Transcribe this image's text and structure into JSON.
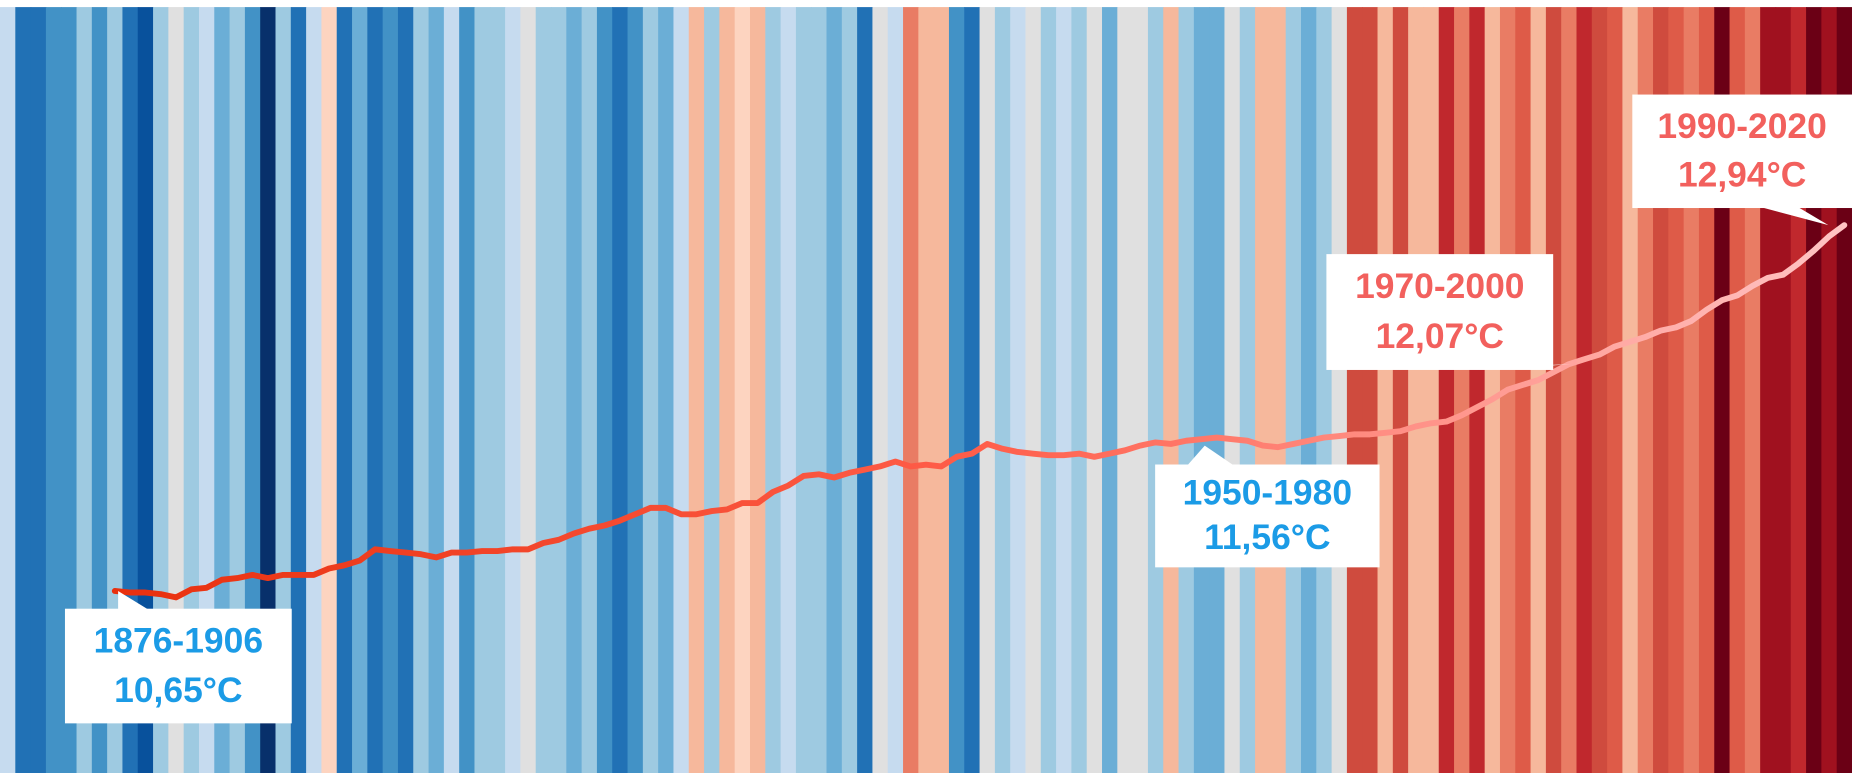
{
  "chart_data": {
    "type": "stripes",
    "stripes": {
      "values": [
        11.39,
        10.29,
        10.29,
        10.56,
        10.56,
        11.11,
        10.56,
        11.11,
        10.29,
        10.01,
        11.11,
        11.66,
        11.11,
        11.39,
        10.84,
        11.11,
        10.56,
        9.74,
        11.11,
        10.29,
        11.39,
        11.94,
        10.29,
        10.84,
        10.29,
        10.56,
        10.29,
        11.11,
        10.84,
        11.39,
        10.56,
        11.11,
        11.11,
        11.39,
        11.66,
        11.11,
        11.11,
        10.84,
        11.11,
        10.56,
        10.29,
        10.56,
        11.11,
        10.84,
        11.39,
        12.21,
        11.11,
        12.21,
        11.94,
        12.21,
        11.11,
        11.39,
        11.11,
        11.11,
        10.84,
        11.11,
        10.29,
        11.66,
        11.39,
        12.49,
        12.21,
        12.21,
        10.56,
        10.29,
        11.66,
        11.11,
        11.39,
        11.66,
        11.11,
        11.39,
        11.11,
        11.66,
        10.84,
        11.66,
        11.66,
        11.11,
        12.21,
        11.11,
        10.84,
        10.84,
        11.66,
        11.11,
        12.21,
        12.21,
        11.11,
        10.84,
        11.11,
        11.66,
        13.04,
        13.04,
        12.21,
        13.04,
        12.21,
        12.21,
        13.31,
        12.49,
        13.31,
        12.21,
        12.49,
        12.76,
        12.21,
        13.04,
        12.49,
        13.31,
        13.04,
        12.76,
        12.21,
        12.49,
        13.04,
        12.76,
        12.49,
        12.76,
        13.86,
        12.76,
        12.49,
        13.59,
        13.59,
        13.31,
        13.86,
        13.59,
        13.86
      ],
      "vlim": [
        9.6,
        14.0
      ],
      "palette": [
        "#08306b",
        "#08519c",
        "#2171b5",
        "#4292c6",
        "#6baed6",
        "#9ecae1",
        "#c6dbef",
        "#e0e0e0",
        "#fdd4c0",
        "#f6b89c",
        "#e97c64",
        "#de5b48",
        "#cf4b3e",
        "#c0282d",
        "#a0111f",
        "#6b0015"
      ]
    },
    "line": {
      "values": [
        10.65,
        10.64,
        10.64,
        10.63,
        10.61,
        10.66,
        10.67,
        10.72,
        10.73,
        10.75,
        10.73,
        10.75,
        10.75,
        10.75,
        10.79,
        10.81,
        10.84,
        10.91,
        10.9,
        10.89,
        10.88,
        10.86,
        10.89,
        10.89,
        10.9,
        10.9,
        10.91,
        10.91,
        10.95,
        10.97,
        11.01,
        11.04,
        11.06,
        11.09,
        11.13,
        11.17,
        11.17,
        11.13,
        11.13,
        11.15,
        11.16,
        11.2,
        11.2,
        11.27,
        11.31,
        11.37,
        11.38,
        11.36,
        11.39,
        11.41,
        11.43,
        11.46,
        11.43,
        11.44,
        11.43,
        11.49,
        11.51,
        11.57,
        11.54,
        11.52,
        11.51,
        11.5,
        11.5,
        11.51,
        11.49,
        11.51,
        11.53,
        11.56,
        11.58,
        11.57,
        11.59,
        11.6,
        11.61,
        11.6,
        11.59,
        11.56,
        11.55,
        11.57,
        11.59,
        11.61,
        11.62,
        11.63,
        11.63,
        11.64,
        11.65,
        11.68,
        11.7,
        11.71,
        11.75,
        11.8,
        11.85,
        11.91,
        11.94,
        11.97,
        12.02,
        12.07,
        12.1,
        12.13,
        12.18,
        12.21,
        12.24,
        12.28,
        12.3,
        12.34,
        12.41,
        12.47,
        12.5,
        12.56,
        12.61,
        12.63,
        12.7,
        12.78,
        12.87,
        12.94
      ],
      "colors": [
        "#e8300e",
        "#ff5e4a",
        "#ffc4c4"
      ]
    },
    "ylim": [
      9.51,
      14.35
    ],
    "annotations": [
      {
        "label": "1876-1906",
        "value": 10.65,
        "value_label": "10,65°C",
        "color": "#1b9be6"
      },
      {
        "label": "1950-1980",
        "value": 11.56,
        "value_label": "11,56°C",
        "color": "#1b9be6"
      },
      {
        "label": "1970-2000",
        "value": 12.07,
        "value_label": "12,07°C",
        "color": "#f2605d"
      },
      {
        "label": "1990-2020",
        "value": 12.94,
        "value_label": "12,94°C",
        "color": "#f2605d"
      }
    ]
  }
}
